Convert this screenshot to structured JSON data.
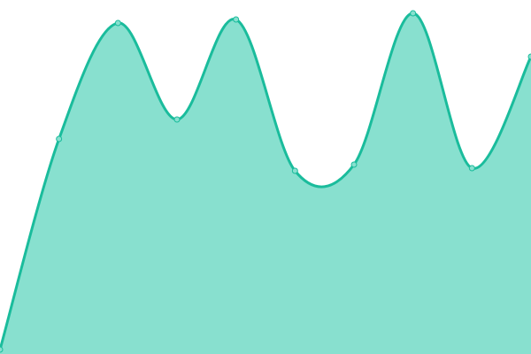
{
  "chart_data": {
    "type": "area",
    "x": [
      0,
      1,
      2,
      3,
      4,
      5,
      6,
      7,
      8,
      9
    ],
    "values": [
      5,
      243,
      374,
      265,
      378,
      207,
      214,
      385,
      210,
      336
    ],
    "ylim": [
      0,
      400
    ],
    "grid": false,
    "legend": "none",
    "smooth": true,
    "colors": {
      "fill": "#88e0cf",
      "line": "#1abc9c",
      "point": "#88e0cf"
    }
  }
}
